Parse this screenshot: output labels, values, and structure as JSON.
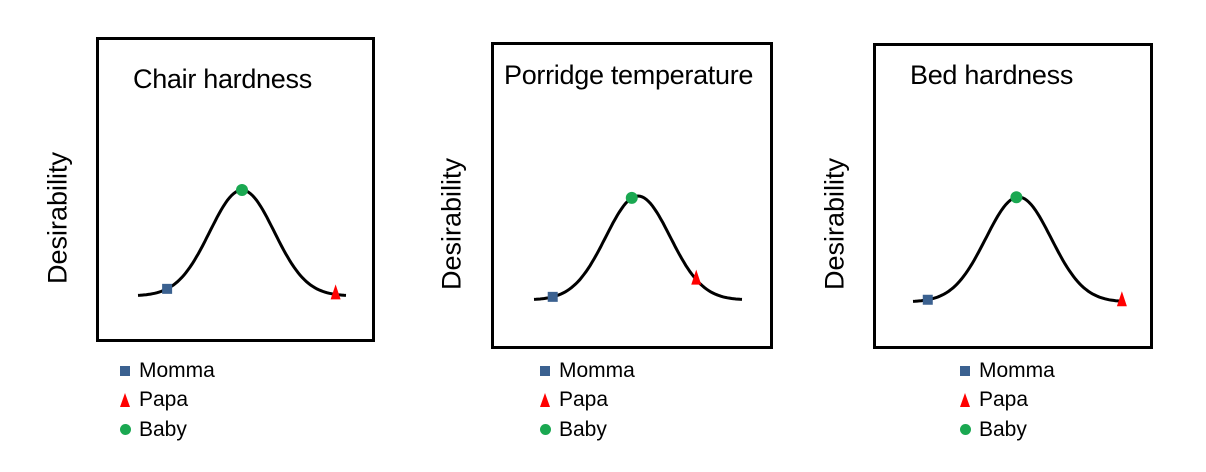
{
  "panels": [
    {
      "title": "Chair hardness",
      "ylabel": "Desirability",
      "markers": {
        "momma": 0.14,
        "baby": 0.5,
        "papa": 0.95
      },
      "legend": [
        "Momma",
        "Papa",
        "Baby"
      ]
    },
    {
      "title": "Porridge temperature",
      "ylabel": "Desirability",
      "markers": {
        "momma": 0.09,
        "baby": 0.47,
        "papa": 0.78
      },
      "legend": [
        "Momma",
        "Papa",
        "Baby"
      ]
    },
    {
      "title": "Bed hardness",
      "ylabel": "Desirability",
      "markers": {
        "momma": 0.07,
        "baby": 0.49,
        "papa": 0.99
      },
      "legend": [
        "Momma",
        "Papa",
        "Baby"
      ]
    }
  ],
  "colors": {
    "momma": "#3b6190",
    "papa": "#ff0000",
    "baby": "#1aa851",
    "curve": "#000000"
  }
}
